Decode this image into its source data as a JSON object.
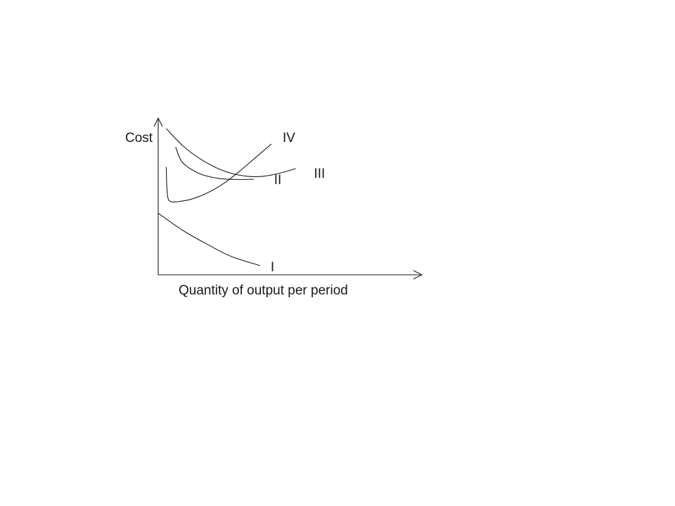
{
  "chart_data": {
    "type": "line",
    "title": "",
    "xlabel": "Quantity of output per period",
    "ylabel": "Cost",
    "xlim": [
      0,
      10
    ],
    "ylim": [
      0,
      10
    ],
    "ticks": "none",
    "grid": false,
    "legend": "none",
    "curve_labels_position": "at right end of each curve",
    "series": [
      {
        "name": "I",
        "x": [
          0,
          1.5,
          3,
          4.5,
          6.3
        ],
        "y": [
          4.0,
          2.9,
          2.0,
          1.2,
          0.6
        ]
      },
      {
        "name": "II",
        "x": [
          1.08,
          1.5,
          2.5,
          3.5,
          4.5,
          5.9
        ],
        "y": [
          8.3,
          7.3,
          6.6,
          6.3,
          6.2,
          6.2
        ]
      },
      {
        "name": "III",
        "x": [
          0.5,
          1.5,
          2.5,
          3.5,
          4.5,
          5.5,
          6.5,
          7.5,
          8.5
        ],
        "y": [
          9.5,
          8.4,
          7.6,
          7.0,
          6.6,
          6.4,
          6.4,
          6.6,
          6.9
        ]
      },
      {
        "name": "IV",
        "x": [
          0.5,
          0.52,
          0.6,
          0.8,
          1.2,
          2,
          3,
          4,
          5,
          6,
          7
        ],
        "y": [
          7.0,
          6.0,
          5.0,
          4.75,
          4.75,
          4.9,
          5.3,
          5.9,
          6.7,
          7.6,
          8.5
        ]
      }
    ]
  }
}
